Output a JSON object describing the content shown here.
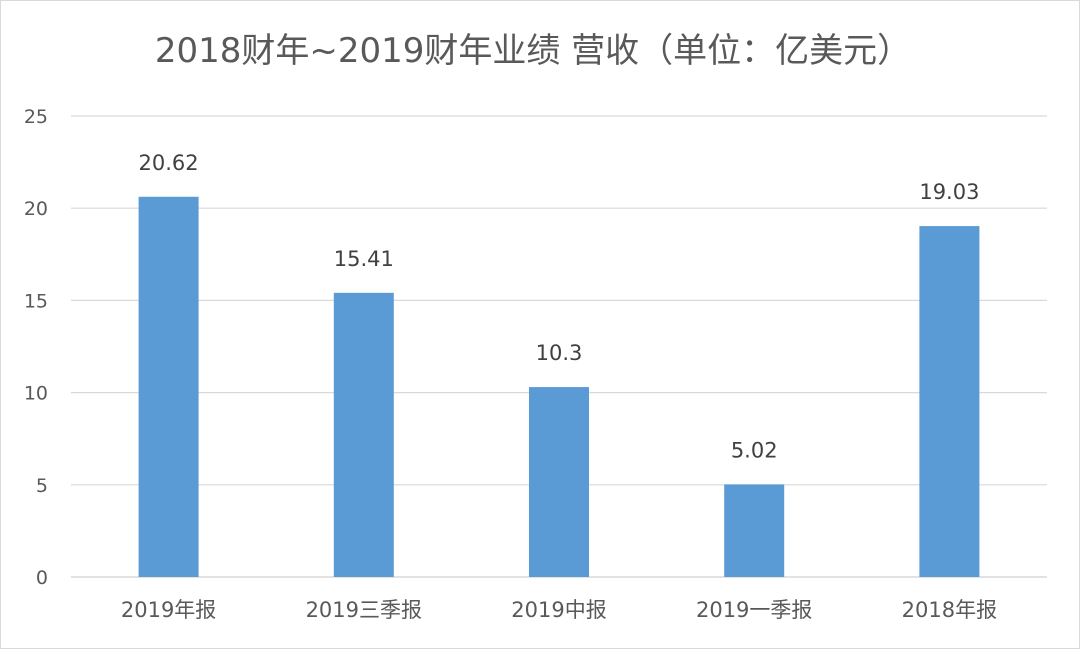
{
  "chart_data": {
    "type": "bar",
    "title": "2018财年~2019财年业绩 营收（单位：亿美元）",
    "categories": [
      "2019年报",
      "2019三季报",
      "2019中报",
      "2019一季报",
      "2018年报"
    ],
    "values": [
      20.62,
      15.41,
      10.3,
      5.02,
      19.03
    ],
    "data_labels": [
      "20.62",
      "15.41",
      "10.3",
      "5.02",
      "19.03"
    ],
    "yticks": [
      "0",
      "5",
      "10",
      "15",
      "20",
      "25"
    ],
    "ylim": [
      0,
      25
    ],
    "grid": true,
    "legend": "none"
  },
  "colors": {
    "bar": "#5b9bd5",
    "grid": "#d9d9d9",
    "axis_text": "#595959"
  }
}
